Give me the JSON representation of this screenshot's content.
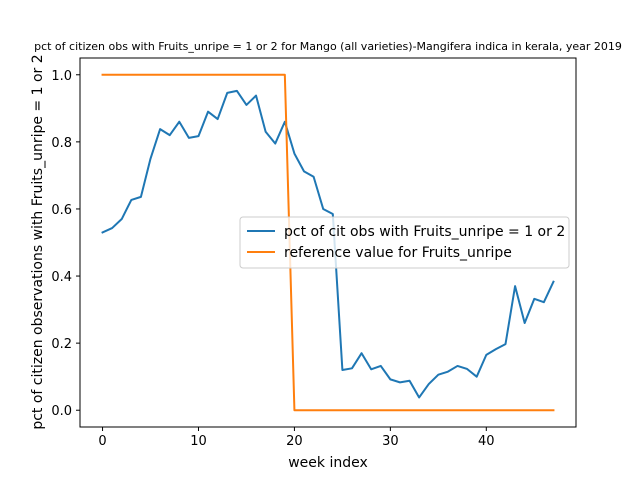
{
  "chart_data": {
    "type": "line",
    "title": "pct of citizen obs with Fruits_unripe = 1 or 2 for Mango (all varieties)-Mangifera indica in kerala, year 2019",
    "xlabel": "week index",
    "ylabel": "pct of citizen observations with Fruits_unripe = 1 or 2",
    "xlim": [
      -2.35,
      49.35
    ],
    "ylim": [
      -0.05,
      1.05
    ],
    "x_ticks": [
      0,
      10,
      20,
      30,
      40
    ],
    "y_ticks": [
      0.0,
      0.2,
      0.4,
      0.6,
      0.8,
      1.0
    ],
    "x_tick_labels": [
      "0",
      "10",
      "20",
      "30",
      "40"
    ],
    "y_tick_labels": [
      "0.0",
      "0.2",
      "0.4",
      "0.6",
      "0.8",
      "1.0"
    ],
    "grid": false,
    "legend_position": "center-right",
    "series": [
      {
        "name": "pct of cit obs with Fruits_unripe = 1 or 2",
        "color": "#1f77b4",
        "x": [
          0,
          1,
          2,
          3,
          4,
          5,
          6,
          7,
          8,
          9,
          10,
          11,
          12,
          13,
          14,
          15,
          16,
          17,
          18,
          19,
          20,
          21,
          22,
          23,
          24,
          25,
          26,
          27,
          28,
          29,
          30,
          31,
          32,
          33,
          34,
          35,
          36,
          37,
          38,
          39,
          40,
          41,
          42,
          43,
          44,
          45,
          46,
          47
        ],
        "y": [
          0.53,
          0.543,
          0.57,
          0.627,
          0.636,
          0.75,
          0.838,
          0.82,
          0.86,
          0.812,
          0.817,
          0.89,
          0.868,
          0.946,
          0.952,
          0.91,
          0.938,
          0.83,
          0.795,
          0.86,
          0.765,
          0.712,
          0.696,
          0.6,
          0.585,
          0.12,
          0.125,
          0.17,
          0.122,
          0.132,
          0.092,
          0.083,
          0.088,
          0.038,
          0.078,
          0.106,
          0.115,
          0.132,
          0.123,
          0.1,
          0.165,
          0.182,
          0.197,
          0.37,
          0.26,
          0.332,
          0.322,
          0.383
        ]
      },
      {
        "name": "reference value for Fruits_unripe",
        "color": "#ff7f0e",
        "x": [
          0,
          19,
          20,
          47
        ],
        "y": [
          1.0,
          1.0,
          0.0,
          0.0
        ]
      }
    ]
  }
}
